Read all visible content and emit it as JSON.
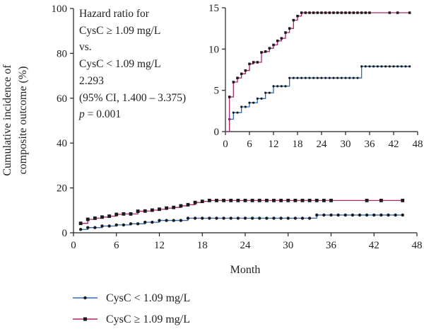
{
  "colors": {
    "low": "#2e6db4",
    "high": "#b0246f",
    "axis": "#222222"
  },
  "annotation": {
    "lines": [
      "Hazard ratio for",
      "CysC ≥ 1.09 mg/L",
      "vs.",
      "CysC < 1.09 mg/L",
      "2.293",
      "(95% CI, 1.400 – 3.375)"
    ],
    "p_label": "p",
    "p_value": " = 0.001"
  },
  "legend": [
    {
      "label": "CysC < 1.09 mg/L",
      "series": 0
    },
    {
      "label": "CysC ≥ 1.09 mg/L",
      "series": 1
    }
  ],
  "chart_data": [
    {
      "type": "line",
      "step": true,
      "xlabel": "Month",
      "ylabel": [
        "Cumulative incidence of",
        "composite outcome (%)"
      ],
      "xlim": [
        0,
        48
      ],
      "ylim": [
        0,
        100
      ],
      "xticks": [
        0,
        6,
        12,
        18,
        24,
        30,
        36,
        42,
        48
      ],
      "yticks": [
        0,
        20,
        40,
        60,
        80,
        100
      ],
      "series": [
        {
          "name": "CysC < 1.09 mg/L",
          "marker_x": [
            1,
            2,
            3,
            4,
            5,
            6,
            7,
            8,
            9,
            10,
            11,
            12,
            13,
            14,
            15,
            16,
            17,
            18,
            19,
            20,
            21,
            22,
            23,
            24,
            25,
            26,
            27,
            28,
            29,
            30,
            31,
            32,
            33,
            34,
            35,
            36,
            37,
            38,
            39,
            40,
            41,
            42,
            43,
            44,
            45,
            46
          ],
          "x": [
            1,
            2,
            4,
            6,
            8,
            10,
            12,
            16,
            34,
            46
          ],
          "y": [
            1.5,
            2.3,
            3.0,
            3.5,
            4.0,
            4.7,
            5.5,
            6.5,
            7.9,
            7.9
          ]
        },
        {
          "name": "CysC ≥ 1.09 mg/L",
          "marker_x": [
            1,
            2,
            3,
            4,
            5,
            6,
            7,
            8,
            9,
            10,
            11,
            12,
            13,
            14,
            15,
            16,
            17,
            18,
            19,
            20,
            21,
            22,
            23,
            24,
            25,
            26,
            27,
            28,
            29,
            30,
            31,
            32,
            33,
            34,
            35,
            36,
            41,
            43,
            46
          ],
          "x": [
            1,
            2,
            3,
            4,
            5,
            6,
            7,
            9,
            10,
            11,
            12,
            13,
            14,
            15,
            16,
            17,
            18,
            19,
            46
          ],
          "y": [
            4.2,
            6.0,
            6.5,
            7.0,
            7.4,
            8.2,
            8.4,
            9.6,
            9.7,
            10.1,
            10.5,
            11.0,
            11.3,
            12.0,
            12.5,
            13.5,
            14.0,
            14.4,
            14.4
          ]
        }
      ]
    },
    {
      "type": "line",
      "step": true,
      "inset": true,
      "xlim": [
        0,
        48
      ],
      "ylim": [
        0,
        15
      ],
      "xticks": [
        0,
        6,
        12,
        18,
        24,
        30,
        36,
        42,
        48
      ],
      "yticks": [
        0,
        5,
        10,
        15
      ],
      "series_from_main": true
    }
  ]
}
